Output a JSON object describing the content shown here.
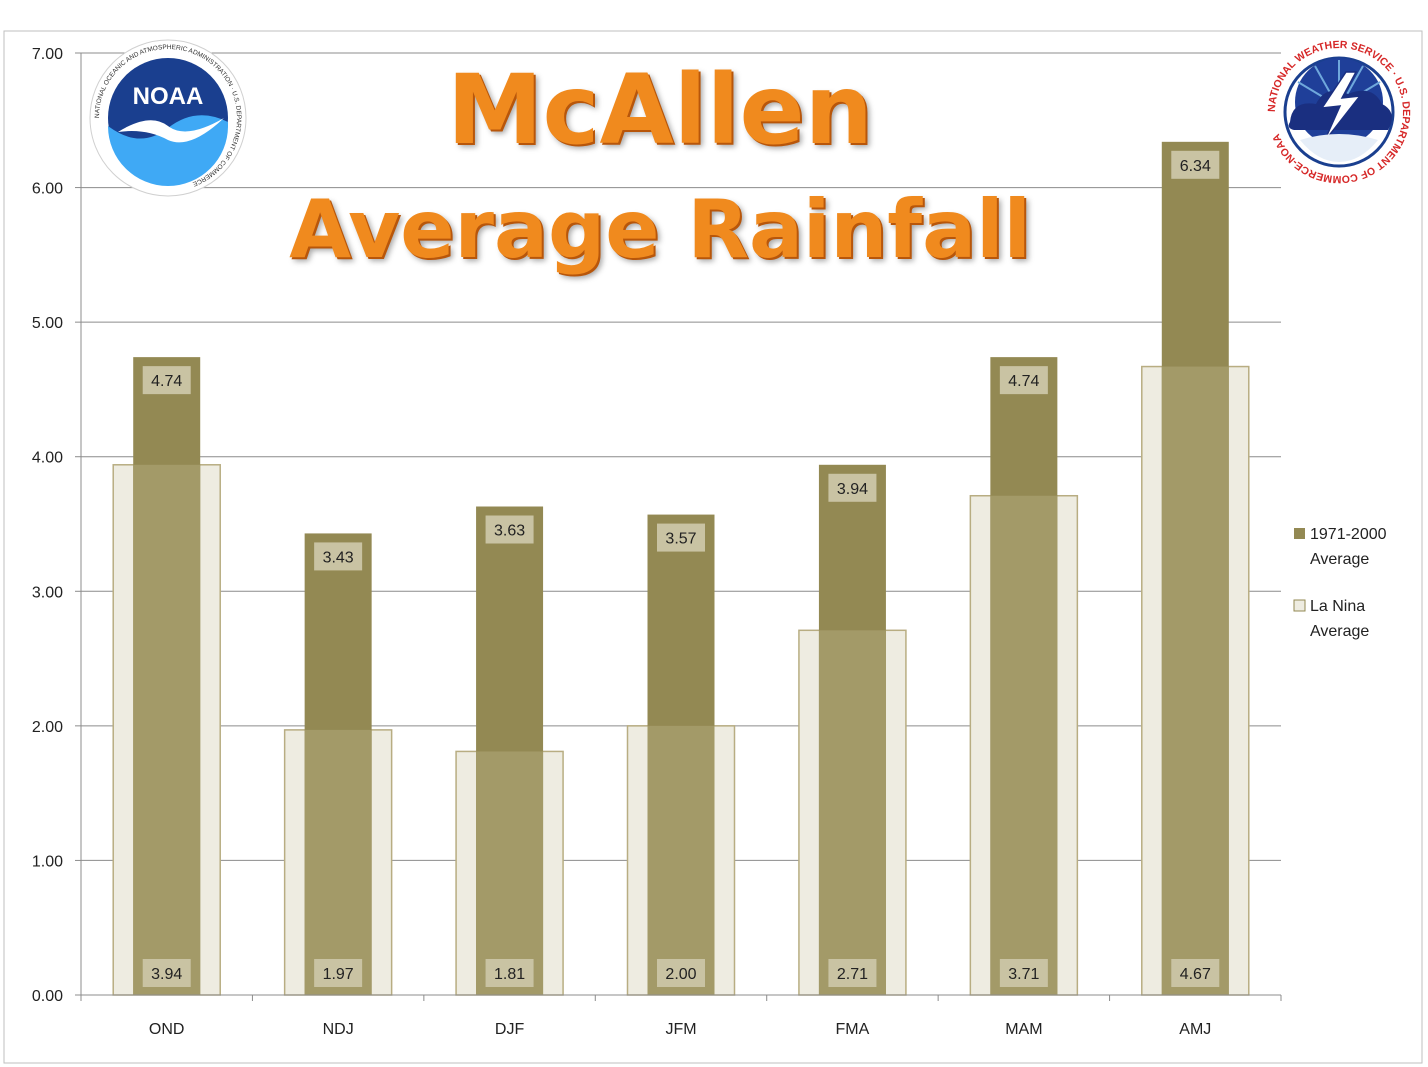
{
  "chart_data": {
    "type": "bar",
    "title": [
      "McAllen",
      "Average Rainfall"
    ],
    "xlabel": "",
    "ylabel": "",
    "categories": [
      "OND",
      "NDJ",
      "DJF",
      "JFM",
      "FMA",
      "MAM",
      "AMJ"
    ],
    "ylim": [
      0,
      7
    ],
    "yticks": [
      "0.00",
      "1.00",
      "2.00",
      "3.00",
      "4.00",
      "5.00",
      "6.00",
      "7.00"
    ],
    "grid": true,
    "legend_position": "right",
    "series": [
      {
        "name": "1971-2000 Average",
        "values": [
          4.74,
          3.43,
          3.63,
          3.57,
          3.94,
          4.74,
          6.34
        ],
        "labels": [
          "4.74",
          "3.43",
          "3.63",
          "3.57",
          "3.94",
          "4.74",
          "6.34"
        ],
        "color": "#938953"
      },
      {
        "name": "La Nina Average",
        "values": [
          3.94,
          1.97,
          1.81,
          2.0,
          2.71,
          3.71,
          4.67
        ],
        "labels": [
          "3.94",
          "1.97",
          "1.81",
          "2.00",
          "2.71",
          "3.71",
          "4.67"
        ],
        "color": "#eeece1"
      }
    ],
    "legend": [
      "1971-2000\nAverage",
      "La Nina\nAverage"
    ]
  },
  "logos": {
    "left": {
      "icon": "noaa-logo-icon",
      "text": "NOAA",
      "ring_text": "NATIONAL OCEANIC AND ATMOSPHERIC ADMINISTRATION · U.S. DEPARTMENT OF COMMERCE"
    },
    "right": {
      "icon": "nws-logo-icon",
      "ring_text": "NATIONAL WEATHER SERVICE · U.S. DEPARTMENT OF COMMERCE-NOAA"
    }
  },
  "colors": {
    "title": "#f08a1e",
    "grid": "#8c8c8c",
    "text": "#222222",
    "noaa_blue": "#1a3f8f",
    "nws_red": "#d62828"
  }
}
